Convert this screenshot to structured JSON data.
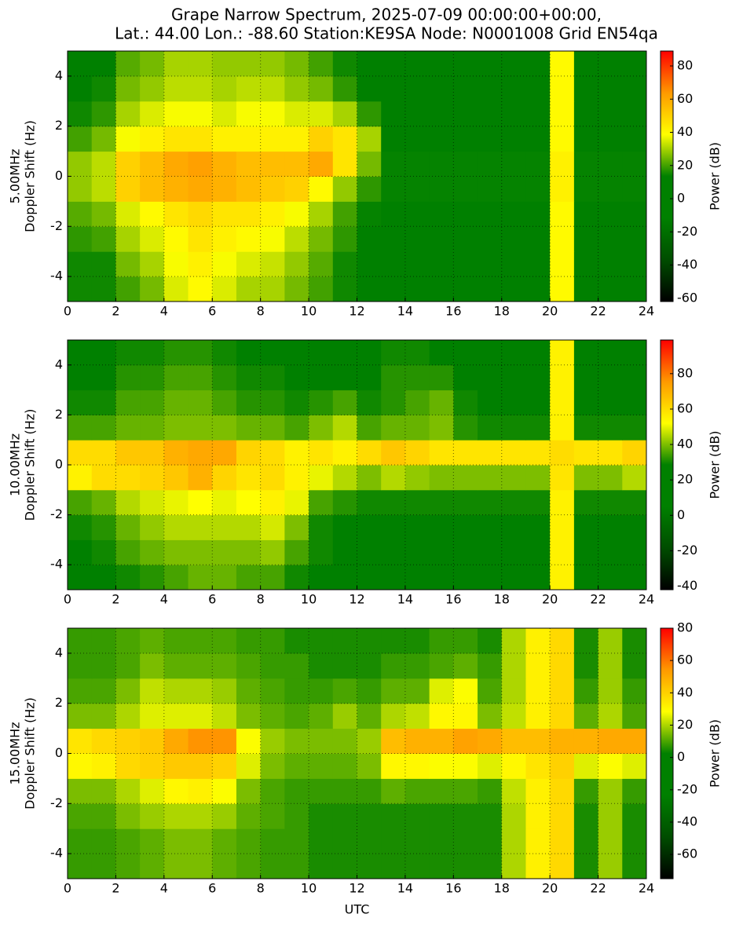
{
  "title": [
    "Grape Narrow Spectrum, 2025-07-09 00:00:00+00:00,",
    "Lat.: 44.00 Lon.: -88.60 Station:KE9SA Node: N0001008 Grid EN54qa"
  ],
  "chart_data": [
    {
      "type": "heatmap",
      "ylabel": [
        "5.00MHz",
        "Doppler Shift (Hz)"
      ],
      "colorbar_label": "Power (dB)",
      "xlim": [
        0,
        24
      ],
      "xticks": [
        0,
        2,
        4,
        6,
        8,
        10,
        12,
        14,
        16,
        18,
        20,
        22,
        24
      ],
      "ylim": [
        -5,
        5
      ],
      "yticks": [
        -4,
        -2,
        0,
        2,
        4
      ],
      "grid": true,
      "zlim": [
        -62,
        89
      ],
      "zticks": [
        -60,
        -40,
        -20,
        0,
        20,
        40,
        60,
        80
      ],
      "colormap": [
        "#000000",
        "#004d00",
        "#008000",
        "#008000",
        "#ffff00",
        "#ff9900",
        "#ff0000"
      ],
      "xbins": [
        0,
        1,
        2,
        3,
        4,
        5,
        6,
        7,
        8,
        9,
        10,
        11,
        12,
        13,
        14,
        15,
        16,
        17,
        18,
        19,
        20,
        21,
        22,
        23,
        24
      ],
      "ybins": [
        -5,
        -4,
        -3,
        -2,
        -1,
        0,
        1,
        2,
        3,
        4,
        5
      ],
      "z": [
        [
          15,
          15,
          20,
          25,
          35,
          40,
          35,
          30,
          30,
          25,
          20,
          15,
          12,
          10,
          10,
          10,
          10,
          10,
          10,
          10,
          40,
          10,
          10,
          10
        ],
        [
          15,
          15,
          25,
          30,
          38,
          42,
          38,
          35,
          33,
          28,
          22,
          15,
          12,
          10,
          10,
          10,
          10,
          10,
          10,
          10,
          40,
          10,
          10,
          10
        ],
        [
          18,
          20,
          30,
          35,
          40,
          45,
          42,
          40,
          38,
          32,
          25,
          18,
          12,
          10,
          10,
          10,
          10,
          10,
          10,
          10,
          40,
          10,
          10,
          10
        ],
        [
          22,
          25,
          35,
          40,
          45,
          48,
          45,
          45,
          42,
          38,
          30,
          20,
          14,
          10,
          10,
          10,
          10,
          10,
          10,
          10,
          40,
          10,
          10,
          10
        ],
        [
          28,
          32,
          50,
          55,
          58,
          60,
          58,
          55,
          52,
          50,
          40,
          28,
          18,
          14,
          14,
          14,
          14,
          14,
          14,
          14,
          42,
          14,
          14,
          14
        ],
        [
          28,
          32,
          50,
          55,
          60,
          62,
          58,
          55,
          55,
          55,
          60,
          45,
          25,
          14,
          14,
          14,
          14,
          14,
          14,
          14,
          42,
          14,
          14,
          14
        ],
        [
          20,
          25,
          38,
          42,
          45,
          45,
          42,
          42,
          42,
          42,
          50,
          45,
          30,
          12,
          10,
          10,
          10,
          10,
          10,
          10,
          40,
          10,
          10,
          10
        ],
        [
          15,
          18,
          30,
          35,
          38,
          38,
          35,
          38,
          38,
          35,
          35,
          30,
          18,
          10,
          10,
          10,
          10,
          10,
          10,
          10,
          40,
          10,
          10,
          10
        ],
        [
          12,
          15,
          25,
          28,
          32,
          32,
          30,
          32,
          32,
          28,
          25,
          18,
          12,
          10,
          10,
          10,
          10,
          10,
          10,
          10,
          40,
          10,
          10,
          10
        ],
        [
          12,
          12,
          22,
          25,
          30,
          30,
          28,
          28,
          28,
          25,
          20,
          15,
          10,
          10,
          10,
          10,
          10,
          10,
          10,
          10,
          40,
          10,
          10,
          10
        ]
      ]
    },
    {
      "type": "heatmap",
      "ylabel": [
        "10.00MHz",
        "Doppler Shift (Hz)"
      ],
      "colorbar_label": "Power (dB)",
      "xlim": [
        0,
        24
      ],
      "xticks": [
        0,
        2,
        4,
        6,
        8,
        10,
        12,
        14,
        16,
        18,
        20,
        22,
        24
      ],
      "ylim": [
        -5,
        5
      ],
      "yticks": [
        -4,
        -2,
        0,
        2,
        4
      ],
      "grid": true,
      "zlim": [
        -42,
        99
      ],
      "zticks": [
        -40,
        -20,
        0,
        20,
        40,
        60,
        80
      ],
      "colormap": [
        "#000000",
        "#004d00",
        "#008000",
        "#008000",
        "#ffff00",
        "#ff9900",
        "#ff0000"
      ],
      "xbins": [
        0,
        1,
        2,
        3,
        4,
        5,
        6,
        7,
        8,
        9,
        10,
        11,
        12,
        13,
        14,
        15,
        16,
        17,
        18,
        19,
        20,
        21,
        22,
        23,
        24
      ],
      "ybins": [
        -5,
        -4,
        -3,
        -2,
        -1,
        0,
        1,
        2,
        3,
        4,
        5
      ],
      "z": [
        [
          28,
          28,
          30,
          32,
          35,
          38,
          38,
          35,
          35,
          30,
          28,
          28,
          28,
          28,
          28,
          28,
          28,
          28,
          28,
          28,
          55,
          28,
          28,
          28
        ],
        [
          28,
          30,
          35,
          38,
          40,
          40,
          40,
          40,
          42,
          35,
          30,
          28,
          28,
          28,
          28,
          28,
          28,
          28,
          28,
          28,
          55,
          28,
          28,
          28
        ],
        [
          30,
          32,
          38,
          42,
          45,
          45,
          45,
          45,
          48,
          40,
          30,
          28,
          28,
          28,
          28,
          28,
          28,
          28,
          28,
          28,
          55,
          28,
          28,
          28
        ],
        [
          35,
          38,
          45,
          48,
          50,
          52,
          50,
          52,
          55,
          50,
          35,
          32,
          30,
          30,
          30,
          30,
          30,
          30,
          30,
          30,
          55,
          30,
          30,
          30
        ],
        [
          55,
          60,
          60,
          62,
          65,
          70,
          62,
          58,
          60,
          55,
          50,
          45,
          40,
          45,
          42,
          40,
          40,
          40,
          40,
          40,
          58,
          40,
          40,
          45
        ],
        [
          60,
          60,
          65,
          65,
          70,
          72,
          72,
          62,
          60,
          55,
          58,
          55,
          60,
          65,
          62,
          58,
          58,
          58,
          58,
          58,
          60,
          58,
          58,
          62
        ],
        [
          35,
          35,
          38,
          38,
          40,
          40,
          40,
          38,
          38,
          35,
          40,
          45,
          35,
          38,
          38,
          40,
          32,
          30,
          30,
          30,
          55,
          30,
          30,
          30
        ],
        [
          30,
          30,
          35,
          35,
          38,
          38,
          35,
          32,
          32,
          30,
          32,
          35,
          30,
          32,
          35,
          38,
          30,
          28,
          28,
          28,
          55,
          28,
          28,
          28
        ],
        [
          28,
          28,
          32,
          32,
          35,
          35,
          32,
          30,
          30,
          28,
          28,
          28,
          28,
          32,
          32,
          32,
          28,
          28,
          28,
          28,
          55,
          28,
          28,
          28
        ],
        [
          28,
          28,
          30,
          30,
          32,
          32,
          30,
          28,
          28,
          28,
          28,
          28,
          28,
          30,
          30,
          28,
          28,
          28,
          28,
          28,
          55,
          28,
          28,
          28
        ]
      ]
    },
    {
      "type": "heatmap",
      "ylabel": [
        "15.00MHz",
        "Doppler Shift (Hz)"
      ],
      "colorbar_label": "Power (dB)",
      "xlabel": "UTC",
      "xlim": [
        0,
        24
      ],
      "xticks": [
        0,
        2,
        4,
        6,
        8,
        10,
        12,
        14,
        16,
        18,
        20,
        22,
        24
      ],
      "ylim": [
        -5,
        5
      ],
      "yticks": [
        -4,
        -2,
        0,
        2,
        4
      ],
      "grid": true,
      "zlim": [
        -75,
        80
      ],
      "zticks": [
        -60,
        -40,
        -20,
        0,
        20,
        40,
        60,
        80
      ],
      "colormap": [
        "#000000",
        "#004d00",
        "#008000",
        "#008000",
        "#ffff00",
        "#ff9900",
        "#ff0000"
      ],
      "xbins": [
        0,
        1,
        2,
        3,
        4,
        5,
        6,
        7,
        8,
        9,
        10,
        11,
        12,
        13,
        14,
        15,
        16,
        17,
        18,
        19,
        20,
        21,
        22,
        23,
        24
      ],
      "ybins": [
        -5,
        -4,
        -3,
        -2,
        -1,
        0,
        1,
        2,
        3,
        4,
        5
      ],
      "z": [
        [
          8,
          8,
          10,
          12,
          15,
          15,
          12,
          10,
          8,
          8,
          5,
          5,
          5,
          5,
          5,
          5,
          5,
          5,
          20,
          32,
          38,
          5,
          18,
          5
        ],
        [
          8,
          8,
          10,
          12,
          15,
          15,
          12,
          10,
          8,
          8,
          5,
          5,
          5,
          5,
          5,
          5,
          5,
          5,
          20,
          32,
          38,
          5,
          18,
          5
        ],
        [
          10,
          10,
          15,
          18,
          20,
          20,
          18,
          12,
          10,
          8,
          5,
          5,
          5,
          5,
          5,
          5,
          5,
          5,
          20,
          32,
          38,
          5,
          18,
          5
        ],
        [
          15,
          15,
          20,
          25,
          30,
          32,
          28,
          15,
          10,
          8,
          8,
          8,
          8,
          12,
          10,
          10,
          10,
          8,
          22,
          32,
          38,
          8,
          18,
          8
        ],
        [
          30,
          32,
          38,
          40,
          42,
          42,
          40,
          25,
          15,
          12,
          12,
          12,
          15,
          30,
          30,
          28,
          28,
          25,
          30,
          35,
          40,
          25,
          28,
          25
        ],
        [
          35,
          38,
          40,
          42,
          50,
          55,
          55,
          28,
          18,
          15,
          15,
          15,
          18,
          45,
          48,
          48,
          52,
          50,
          45,
          45,
          48,
          48,
          50,
          50
        ],
        [
          15,
          15,
          20,
          25,
          25,
          25,
          22,
          15,
          12,
          10,
          12,
          18,
          12,
          20,
          22,
          30,
          30,
          15,
          22,
          32,
          38,
          12,
          20,
          10
        ],
        [
          10,
          10,
          15,
          22,
          20,
          20,
          18,
          12,
          10,
          8,
          8,
          10,
          8,
          12,
          12,
          25,
          28,
          10,
          20,
          32,
          38,
          8,
          18,
          8
        ],
        [
          8,
          8,
          10,
          15,
          12,
          12,
          12,
          10,
          8,
          8,
          5,
          5,
          5,
          8,
          8,
          10,
          12,
          8,
          20,
          32,
          38,
          5,
          18,
          5
        ],
        [
          8,
          8,
          10,
          12,
          10,
          10,
          10,
          8,
          8,
          5,
          5,
          5,
          5,
          5,
          5,
          8,
          8,
          5,
          20,
          32,
          38,
          5,
          18,
          5
        ]
      ]
    }
  ]
}
